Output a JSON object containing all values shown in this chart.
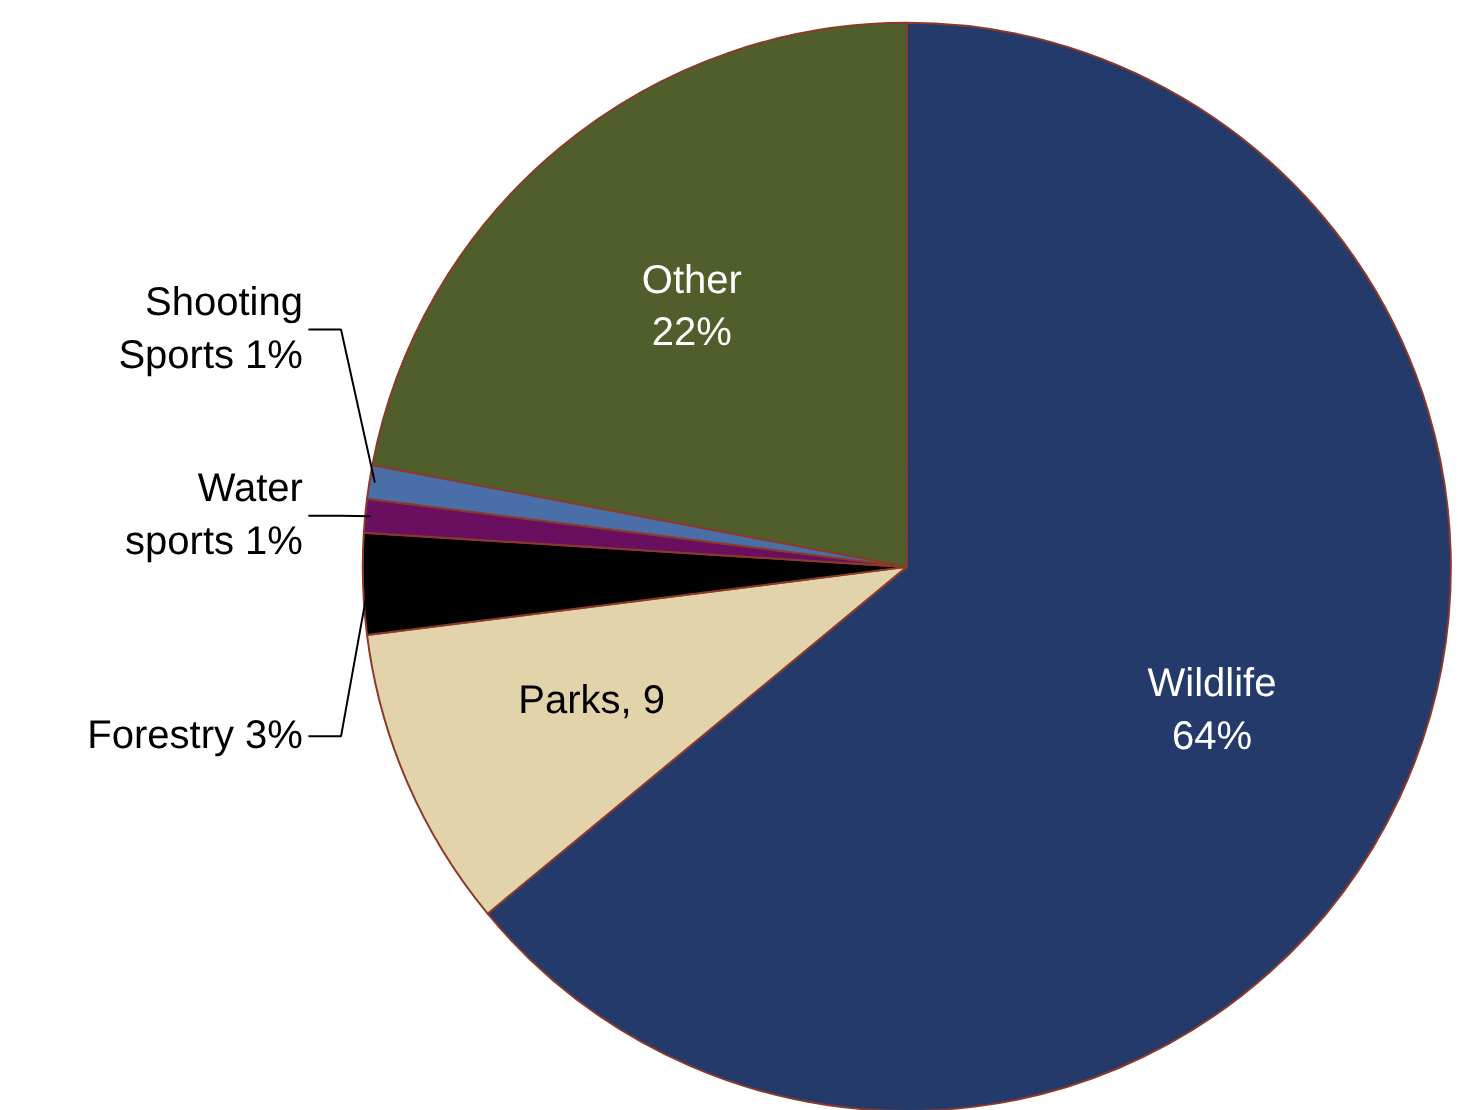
{
  "chart_data": {
    "type": "pie",
    "categories": [
      "Wildlife",
      "Parks",
      "Forestry",
      "Water sports",
      "Shooting Sports",
      "Other"
    ],
    "values": [
      64,
      9,
      3,
      1,
      1,
      22
    ],
    "colors": [
      "#233a6b",
      "#e3d3aa",
      "#000000",
      "#6a0f5f",
      "#4a6fa8",
      "#4f5e2a"
    ],
    "value_labels": [
      "64%",
      "9",
      "3%",
      "1%",
      "1%",
      "22%"
    ]
  }
}
